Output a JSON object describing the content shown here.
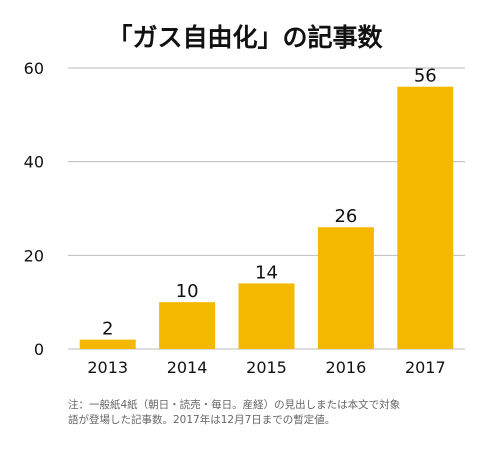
{
  "chart_data": {
    "type": "bar",
    "title": "「ガス自由化」の記事数",
    "categories": [
      "2013",
      "2014",
      "2015",
      "2016",
      "2017"
    ],
    "values": [
      2,
      10,
      14,
      26,
      56
    ],
    "ylim": [
      0,
      60
    ],
    "yticks": [
      0,
      20,
      40,
      60
    ],
    "grid": true,
    "bar_color": "#F5B800",
    "grid_color": "#BBBBBB",
    "xlabel": "",
    "ylabel": ""
  },
  "note": {
    "line1": "注：一般紙4紙（朝日・読売・毎日。産経）の見出しまたは本文で対象",
    "line2": "語が登場した記事数。2017年は12月7日までの暫定値。"
  }
}
